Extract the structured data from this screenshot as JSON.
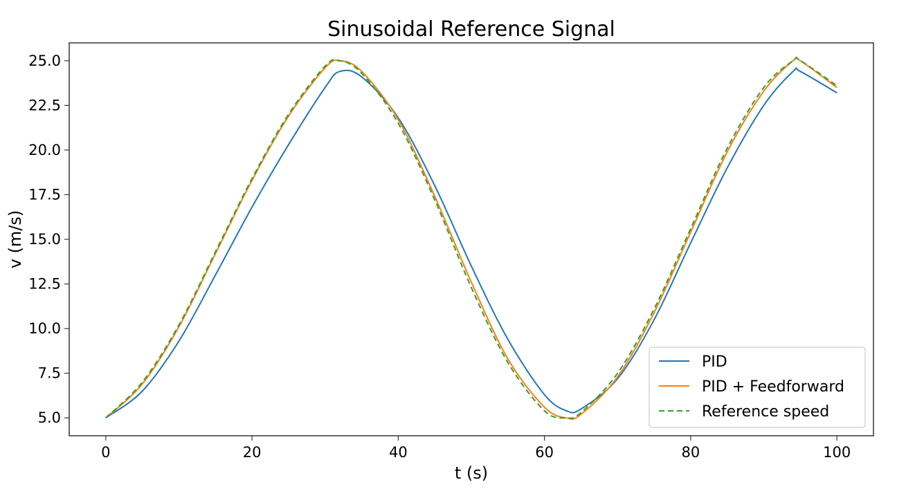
{
  "chart_data": {
    "type": "line",
    "title": "Sinusoidal Reference Signal",
    "xlabel": "t (s)",
    "ylabel": "v (m/s)",
    "xlim": [
      -5,
      105
    ],
    "ylim": [
      4.0,
      26.0
    ],
    "xticks": [
      0,
      20,
      40,
      60,
      80,
      100
    ],
    "xtick_labels": [
      "0",
      "20",
      "40",
      "60",
      "80",
      "100"
    ],
    "yticks": [
      5.0,
      7.5,
      10.0,
      12.5,
      15.0,
      17.5,
      20.0,
      22.5,
      25.0
    ],
    "ytick_labels": [
      "5.0",
      "7.5",
      "10.0",
      "12.5",
      "15.0",
      "17.5",
      "20.0",
      "22.5",
      "25.0"
    ],
    "grid": false,
    "legend_position": "lower-right",
    "x": [
      0,
      5,
      10,
      15,
      20,
      25,
      30,
      32,
      35,
      40,
      45,
      50,
      55,
      60,
      63,
      65,
      70,
      75,
      80,
      85,
      90,
      94,
      95,
      100
    ],
    "series": [
      {
        "name": "PID",
        "color": "#1f77b4",
        "dashed": false,
        "values": [
          5.0,
          6.5,
          9.3,
          13.0,
          16.8,
          20.3,
          23.5,
          24.4,
          24.1,
          21.8,
          18.0,
          13.5,
          9.4,
          6.3,
          5.4,
          5.5,
          7.2,
          10.5,
          14.8,
          19.0,
          22.5,
          24.4,
          24.4,
          23.2
        ]
      },
      {
        "name": "PID + Feedforward",
        "color": "#ff7f0e",
        "dashed": false,
        "values": [
          5.0,
          6.9,
          10.1,
          14.2,
          18.3,
          21.9,
          24.6,
          25.0,
          24.4,
          21.7,
          17.4,
          12.6,
          8.3,
          5.6,
          5.0,
          5.2,
          7.3,
          10.9,
          15.4,
          19.9,
          23.3,
          25.0,
          25.0,
          23.5
        ]
      },
      {
        "name": "Reference speed",
        "color": "#2ca02c",
        "dashed": true,
        "values": [
          5.0,
          7.0,
          10.2,
          14.3,
          18.4,
          22.0,
          24.7,
          25.0,
          24.3,
          21.5,
          17.2,
          12.3,
          8.1,
          5.4,
          5.0,
          5.3,
          7.5,
          11.1,
          15.6,
          20.1,
          23.5,
          25.0,
          25.0,
          23.6
        ]
      }
    ]
  }
}
